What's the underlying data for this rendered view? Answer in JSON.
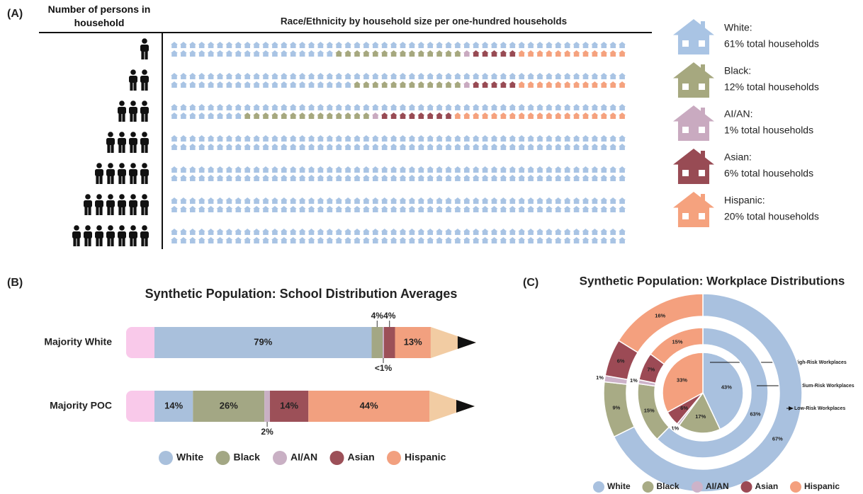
{
  "chart_data": [
    {
      "type": "waffle",
      "panel": "(A)",
      "row_header": "Number of persons in household",
      "title": "Race/Ethnicity by household size per one-hundred households",
      "household_sizes": [
        1,
        2,
        3,
        4,
        5,
        6,
        7
      ],
      "series": [
        {
          "name": "White:",
          "total_label": "61% total households",
          "color": "#a9c4e4",
          "values": [
            68,
            70,
            58,
            100,
            100,
            100,
            100
          ]
        },
        {
          "name": "Black:",
          "total_label": "12% total households",
          "color": "#a6a87f",
          "values": [
            14,
            12,
            14,
            0,
            0,
            0,
            0
          ]
        },
        {
          "name": "AI/AN:",
          "total_label": "1% total households",
          "color": "#c9aac0",
          "values": [
            1,
            1,
            1,
            0,
            0,
            0,
            0
          ]
        },
        {
          "name": "Asian:",
          "total_label": "6% total households",
          "color": "#984b54",
          "values": [
            5,
            5,
            8,
            0,
            0,
            0,
            0
          ]
        },
        {
          "name": "Hispanic:",
          "total_label": "20% total households",
          "color": "#f5a27e",
          "values": [
            12,
            12,
            19,
            0,
            0,
            0,
            0
          ]
        }
      ]
    },
    {
      "type": "bar",
      "orientation": "horizontal",
      "stacked": true,
      "panel": "(B)",
      "title": "Synthetic Population: School Distribution Averages",
      "categories": [
        "Majority White",
        "Majority POC"
      ],
      "series": [
        {
          "name": "White",
          "color": "#a9c0dc",
          "values": [
            79,
            14
          ],
          "value_labels": [
            "79%",
            "14%"
          ]
        },
        {
          "name": "Black",
          "color": "#a3a784",
          "values": [
            4,
            26
          ],
          "value_labels": [
            "4%",
            "26%"
          ]
        },
        {
          "name": "AI/AN",
          "color": "#c9b0c4",
          "values": [
            0.5,
            2
          ],
          "value_labels": [
            "<1%",
            "2%"
          ]
        },
        {
          "name": "Asian",
          "color": "#9c5058",
          "values": [
            4,
            14
          ],
          "value_labels": [
            "4%",
            "14%"
          ]
        },
        {
          "name": "Hispanic",
          "color": "#f2a07f",
          "values": [
            13,
            44
          ],
          "value_labels": [
            "13%",
            "44%"
          ]
        }
      ]
    },
    {
      "type": "donut",
      "panel": "(C)",
      "title": "Synthetic Population: Workplace Distributions",
      "rings": [
        "High-Risk Workplaces",
        "Medium-Risk Workplaces",
        "Low-Risk Workplaces"
      ],
      "series": [
        {
          "name": "White",
          "color": "#a9c1df",
          "values": [
            43,
            63,
            67
          ],
          "value_labels": [
            "43%",
            "63%",
            "67%"
          ]
        },
        {
          "name": "Black",
          "color": "#a8ab85",
          "values": [
            17,
            15,
            9
          ],
          "value_labels": [
            "17%",
            "15%",
            "9%"
          ]
        },
        {
          "name": "AI/AN",
          "color": "#cdb3c9",
          "values": [
            1,
            1,
            1
          ],
          "value_labels": [
            "1%",
            "1%",
            "1%"
          ]
        },
        {
          "name": "Asian",
          "color": "#9c4a55",
          "values": [
            6,
            7,
            6
          ],
          "value_labels": [
            "6%",
            "7%",
            "6%"
          ]
        },
        {
          "name": "Hispanic",
          "color": "#f4a07e",
          "values": [
            33,
            15,
            16
          ],
          "value_labels": [
            "33%",
            "15%",
            "16%"
          ]
        }
      ]
    }
  ]
}
